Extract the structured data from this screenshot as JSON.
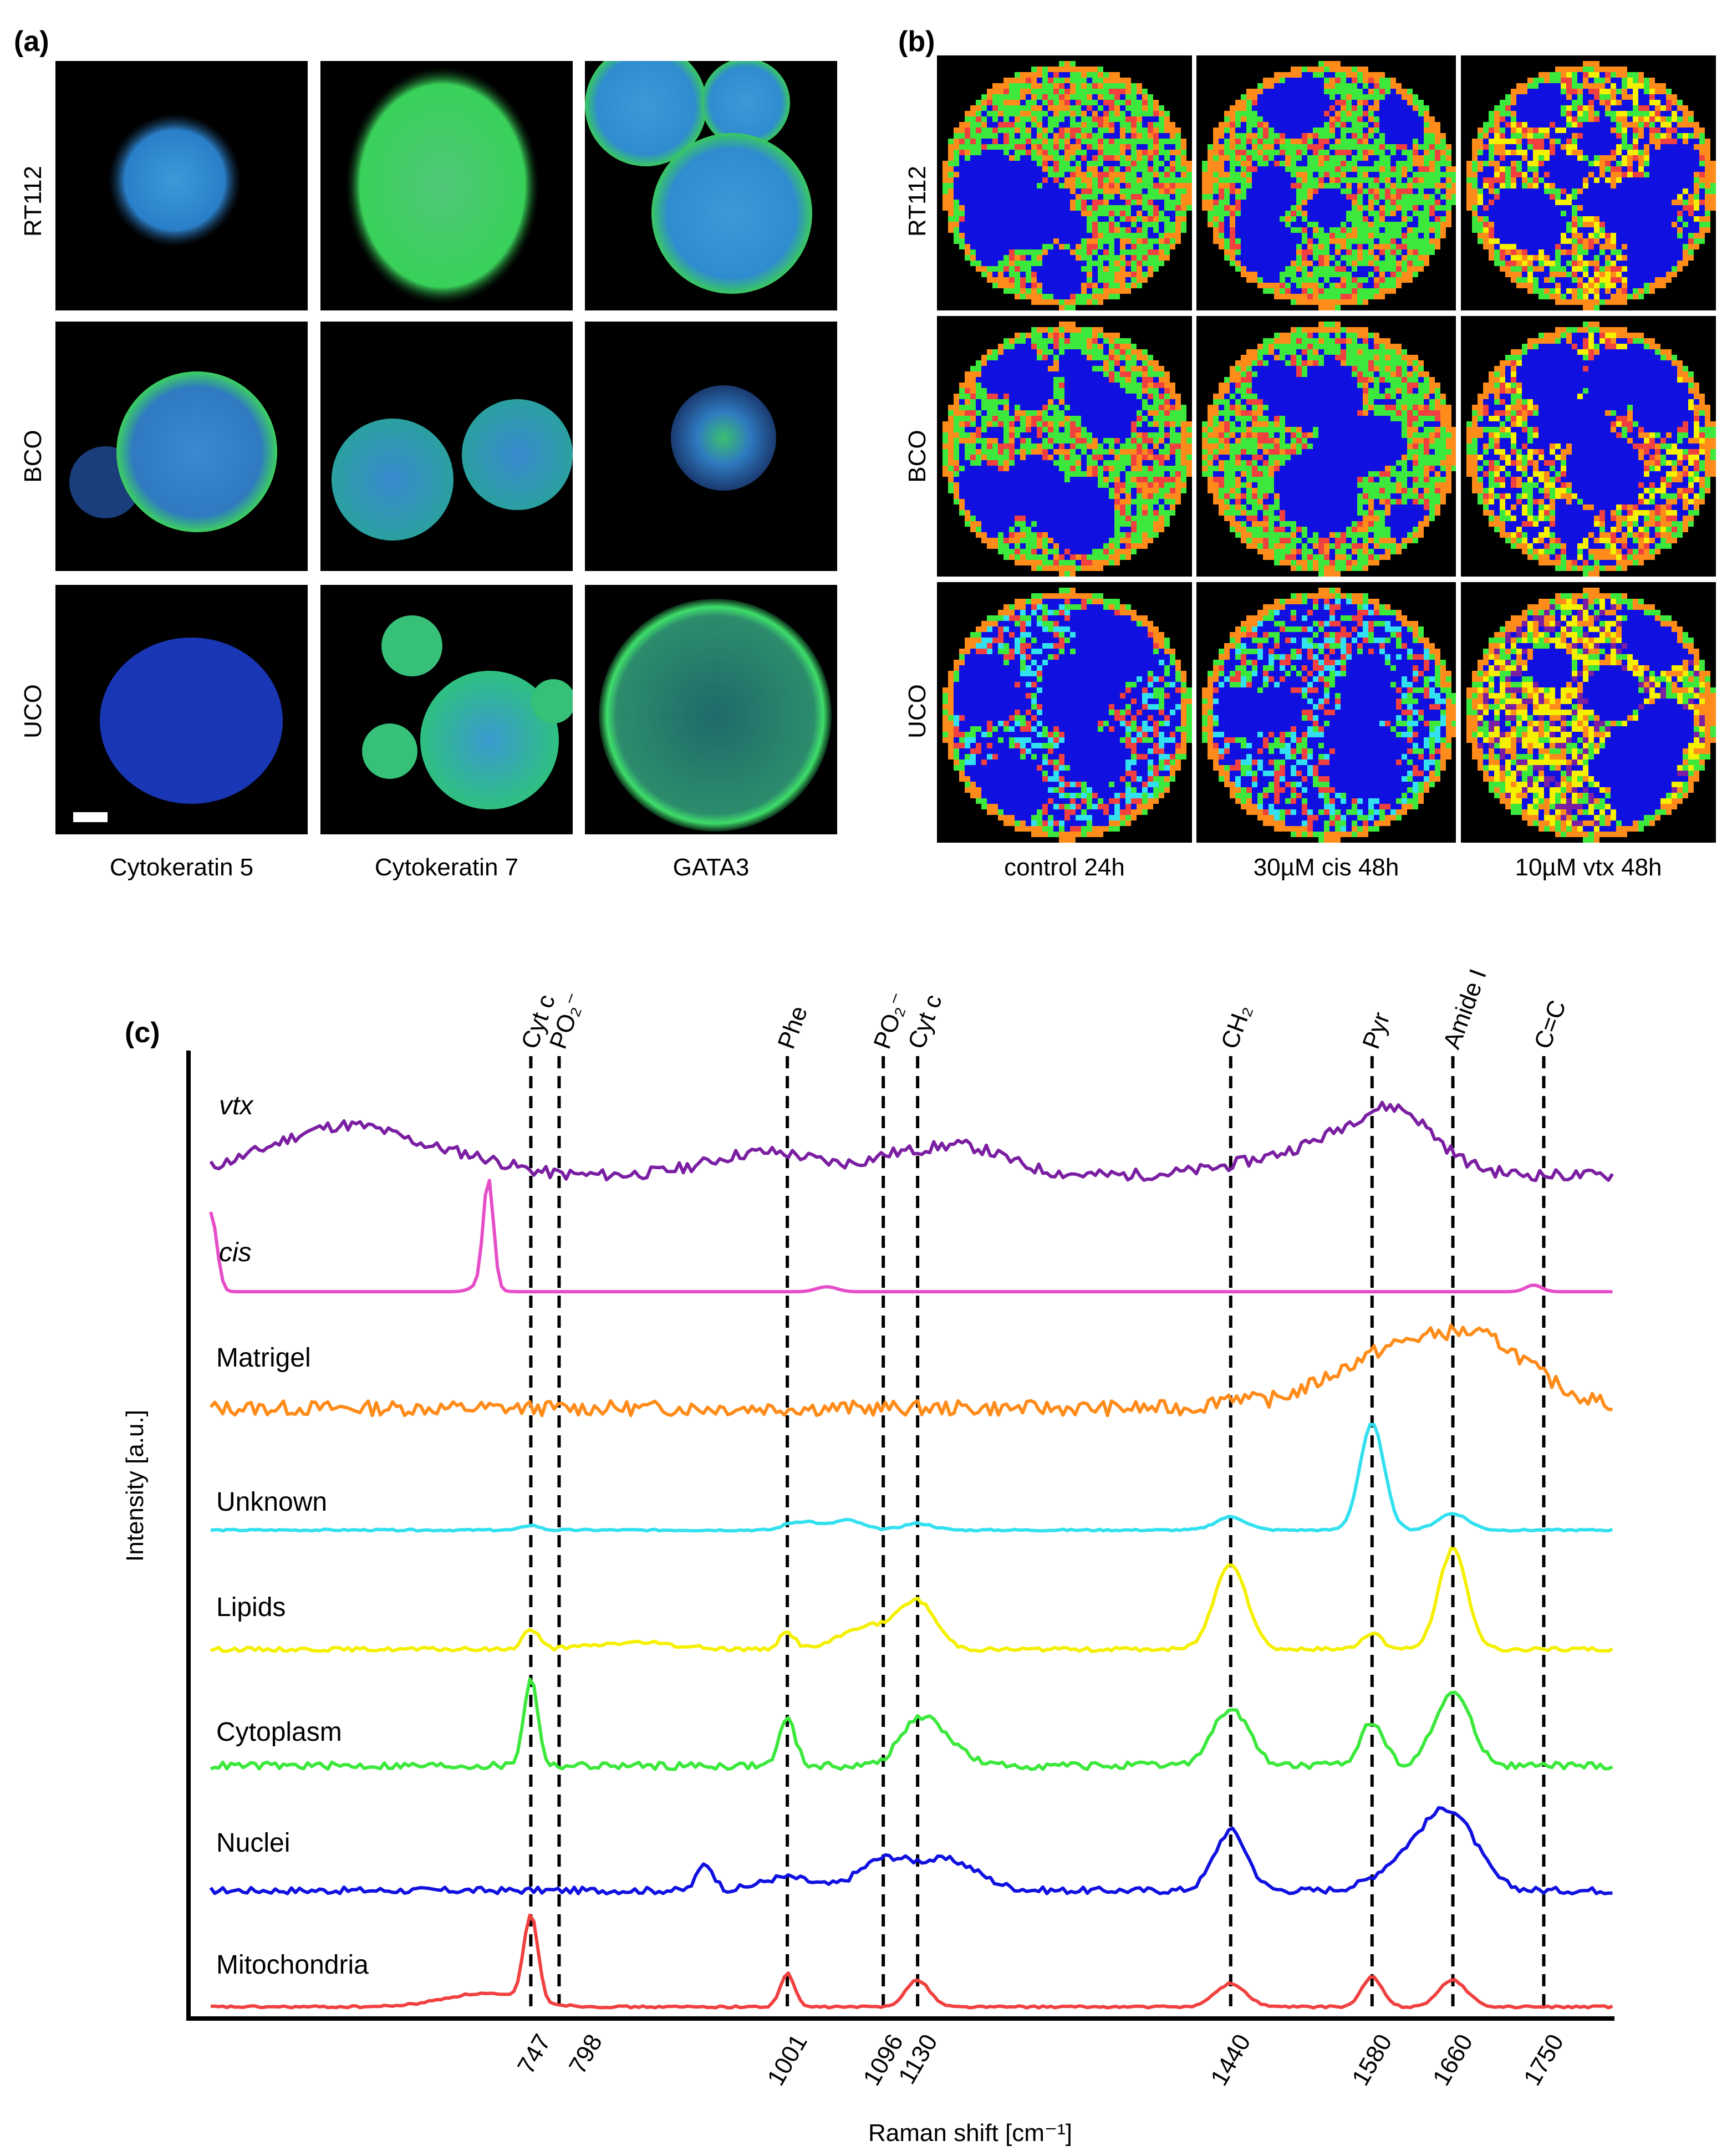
{
  "panel_a": {
    "letter": "(a)",
    "rows": [
      "RT112",
      "BCO",
      "UCO"
    ],
    "columns": [
      "Cytokeratin 5",
      "Cytokeratin 7",
      "GATA3"
    ]
  },
  "panel_b": {
    "letter": "(b)",
    "rows": [
      "RT112",
      "BCO",
      "UCO"
    ],
    "columns": [
      "control 24h",
      "30µM cis 48h",
      "10µM vtx 48h"
    ]
  },
  "colors": {
    "vtx": "#7b1fa2",
    "cis": "#e64ec8",
    "matrigel": "#ff8c1a",
    "unknown": "#33e0f0",
    "lipids": "#f5f000",
    "cytoplasm": "#3ce83c",
    "nuclei": "#1010e0",
    "mitochondria": "#f04040",
    "nucleus_stain": "#1f5fd8",
    "marker_stain": "#3fd86a"
  },
  "chart_data": {
    "type": "line",
    "panel_letter": "(c)",
    "xlabel": "Raman shift [cm⁻¹]",
    "ylabel": "Intensity [a.u.]",
    "xlim": [
      430,
      1820
    ],
    "grid": false,
    "x_ticks": [
      "747",
      "798",
      "1001",
      "1096",
      "1130",
      "1440",
      "1580",
      "1660",
      "1750"
    ],
    "x_tick_values": [
      747,
      798,
      1001,
      1096,
      1130,
      1440,
      1580,
      1660,
      1750
    ],
    "peak_lines": [
      {
        "x": 747,
        "label": "Cyt c"
      },
      {
        "x": 775,
        "label": "PO₂⁻"
      },
      {
        "x": 1001,
        "label": "Phe"
      },
      {
        "x": 1096,
        "label": "PO₂⁻"
      },
      {
        "x": 1130,
        "label": "Cyt c"
      },
      {
        "x": 1440,
        "label": "CH₂"
      },
      {
        "x": 1580,
        "label": "Pyr"
      },
      {
        "x": 1660,
        "label": "Amide I"
      },
      {
        "x": 1750,
        "label": "C=C"
      }
    ],
    "series": [
      {
        "name": "vtx",
        "italic": true,
        "color": "#7b1fa2",
        "noise": 0.35,
        "peaks": [
          [
            520,
            0.8,
            60
          ],
          [
            590,
            1.0,
            55
          ],
          [
            690,
            0.4,
            40
          ],
          [
            980,
            0.7,
            55
          ],
          [
            1100,
            0.3,
            25
          ],
          [
            1170,
            0.9,
            45
          ],
          [
            1500,
            0.5,
            60
          ],
          [
            1590,
            1.4,
            50
          ],
          [
            1610,
            0.6,
            30
          ]
        ]
      },
      {
        "name": "cis",
        "italic": true,
        "color": "#e64ec8",
        "noise": 0.0,
        "peaks": [
          [
            430,
            2.4,
            6
          ],
          [
            700,
            0.25,
            10
          ],
          [
            705,
            3.2,
            5
          ],
          [
            1040,
            0.15,
            10
          ],
          [
            1740,
            0.2,
            8
          ]
        ]
      },
      {
        "name": "Matrigel",
        "italic": false,
        "color": "#ff8c1a",
        "noise": 0.45,
        "peaks": [
          [
            1440,
            0.3,
            15
          ],
          [
            1580,
            0.8,
            60
          ],
          [
            1660,
            1.6,
            70
          ],
          [
            1700,
            0.6,
            40
          ]
        ]
      },
      {
        "name": "Unknown",
        "italic": false,
        "color": "#33e0f0",
        "noise": 0.05,
        "peaks": [
          [
            747,
            0.15,
            8
          ],
          [
            1001,
            0.12,
            8
          ],
          [
            1020,
            0.25,
            12
          ],
          [
            1060,
            0.3,
            15
          ],
          [
            1130,
            0.2,
            15
          ],
          [
            1440,
            0.4,
            15
          ],
          [
            1580,
            3.2,
            12
          ],
          [
            1660,
            0.5,
            15
          ]
        ]
      },
      {
        "name": "Lipids",
        "italic": false,
        "color": "#f5f000",
        "noise": 0.12,
        "peaks": [
          [
            747,
            0.6,
            8
          ],
          [
            850,
            0.2,
            40
          ],
          [
            1001,
            0.5,
            8
          ],
          [
            1080,
            0.7,
            25
          ],
          [
            1130,
            1.4,
            18
          ],
          [
            1440,
            2.6,
            16
          ],
          [
            1580,
            0.5,
            10
          ],
          [
            1660,
            3.0,
            14
          ]
        ]
      },
      {
        "name": "Cytoplasm",
        "italic": false,
        "color": "#3ce83c",
        "noise": 0.22,
        "peaks": [
          [
            747,
            2.6,
            7
          ],
          [
            1001,
            1.4,
            8
          ],
          [
            1130,
            1.3,
            18
          ],
          [
            1160,
            0.6,
            18
          ],
          [
            1440,
            1.7,
            18
          ],
          [
            1580,
            1.3,
            12
          ],
          [
            1660,
            2.2,
            18
          ]
        ]
      },
      {
        "name": "Nuclei",
        "italic": false,
        "color": "#1010e0",
        "noise": 0.2,
        "peaks": [
          [
            920,
            0.8,
            8
          ],
          [
            1000,
            0.4,
            25
          ],
          [
            1096,
            0.9,
            25
          ],
          [
            1160,
            0.9,
            30
          ],
          [
            1440,
            1.8,
            16
          ],
          [
            1620,
            1.0,
            30
          ],
          [
            1660,
            2.0,
            25
          ]
        ]
      },
      {
        "name": "Mitochondria",
        "italic": false,
        "color": "#f04040",
        "noise": 0.06,
        "peaks": [
          [
            700,
            0.4,
            40
          ],
          [
            747,
            2.6,
            7
          ],
          [
            1001,
            1.0,
            7
          ],
          [
            1130,
            0.8,
            12
          ],
          [
            1440,
            0.7,
            15
          ],
          [
            1580,
            0.9,
            10
          ],
          [
            1660,
            0.8,
            14
          ]
        ]
      }
    ]
  }
}
